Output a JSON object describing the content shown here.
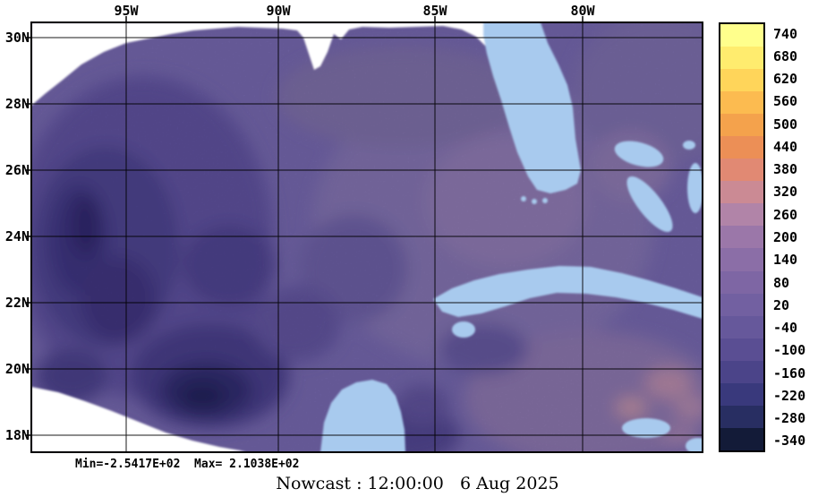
{
  "chart_data": {
    "type": "heatmap",
    "title": "Nowcast : 12:00:00   6 Aug 2025",
    "x_tick_labels": [
      "95W",
      "90W",
      "85W",
      "80W"
    ],
    "y_tick_labels": [
      "30N",
      "28N",
      "26N",
      "24N",
      "22N",
      "20N",
      "18N"
    ],
    "grid": true,
    "stats_label": "Min=-2.5417E+02  Max= 2.1038E+02",
    "min": -254.17,
    "max": 210.38,
    "colorbar": {
      "position": "right",
      "tick_labels": [
        "740",
        "680",
        "620",
        "560",
        "500",
        "440",
        "380",
        "320",
        "260",
        "200",
        "140",
        "80",
        "20",
        "-40",
        "-100",
        "-160",
        "-220",
        "-280",
        "-340"
      ],
      "colors": [
        "#FFFF8C",
        "#FFEC6E",
        "#FFD55A",
        "#FCBB50",
        "#F4A24C",
        "#EC8F56",
        "#E18973",
        "#CB8A94",
        "#B184A8",
        "#9B77A9",
        "#8B6EA7",
        "#7E66A4",
        "#7260A1",
        "#66589B",
        "#5A4E93",
        "#4B4489",
        "#39397C",
        "#282E62",
        "#131B38"
      ]
    },
    "palette_colors": {
      "water_base": "#6F62A5",
      "land_mask": "#A8CAEE",
      "outside_domain": "#FFFFFF"
    }
  }
}
